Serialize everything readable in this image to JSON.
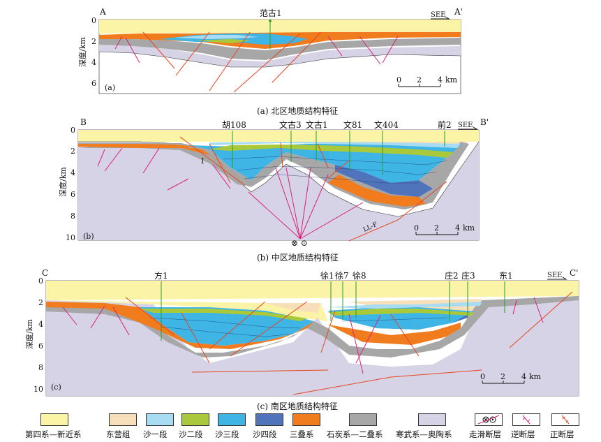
{
  "panels": [
    {
      "id": "a",
      "letter": "(a)",
      "start": "A",
      "end": "A'",
      "direction": "SEE",
      "caption": "(a) 北区地质结构特征",
      "depth_ticks": [
        "0",
        "2",
        "4",
        "6"
      ],
      "ylabel": "深度/km",
      "wells": [
        "范古1"
      ],
      "scale": {
        "labels": [
          "0",
          "2",
          "4"
        ],
        "unit": "km"
      }
    },
    {
      "id": "b",
      "letter": "(b)",
      "start": "B",
      "end": "B'",
      "direction": "SEE",
      "caption": "(b) 中区地质结构特征",
      "depth_ticks": [
        "0",
        "2",
        "4",
        "6",
        "8",
        "10"
      ],
      "ylabel": "深度/km",
      "wells": [
        "胡108",
        "文古3",
        "文古1",
        "文81",
        "文404",
        "前2"
      ],
      "fault_label": "LL-F",
      "fault_marker": "I",
      "slip_symbols": "⊗ ⊙",
      "scale": {
        "labels": [
          "0",
          "2",
          "4"
        ],
        "unit": "km"
      }
    },
    {
      "id": "c",
      "letter": "(c)",
      "start": "C",
      "end": "C'",
      "direction": "SEE",
      "caption": "(c) 南区地质结构特征",
      "depth_ticks": [
        "0",
        "2",
        "4",
        "6",
        "8",
        "10"
      ],
      "ylabel": "深度/km",
      "wells": [
        "方1",
        "徐1",
        "徐7",
        "徐8",
        "庄2",
        "庄3",
        "东1"
      ],
      "scale": {
        "labels": [
          "0",
          "2",
          "4"
        ],
        "unit": "km"
      }
    }
  ],
  "legend": [
    {
      "label": "第四系—新近系",
      "color": "#fbf3a6"
    },
    {
      "label": "东营组",
      "color": "#f6dfb9"
    },
    {
      "label": "沙一段",
      "color": "#a8dcf2"
    },
    {
      "label": "沙二段",
      "color": "#a9c83a"
    },
    {
      "label": "沙三段",
      "color": "#3fb5e5"
    },
    {
      "label": "沙四段",
      "color": "#4f74bc"
    },
    {
      "label": "三叠系",
      "color": "#f07c1e"
    },
    {
      "label": "石炭系—二叠系",
      "color": "#a7a7a7"
    },
    {
      "label": "寒武系—奥陶系",
      "color": "#d6d3e6"
    },
    {
      "label": "走滑断层",
      "icon": "strike-slip"
    },
    {
      "label": "逆断层",
      "icon": "reverse"
    },
    {
      "label": "正断层",
      "icon": "normal"
    }
  ],
  "colors": {
    "fault_normal": "#e8451f",
    "fault_reverse": "#d9207c",
    "well": "#2e9a2e",
    "frame": "#555555"
  }
}
